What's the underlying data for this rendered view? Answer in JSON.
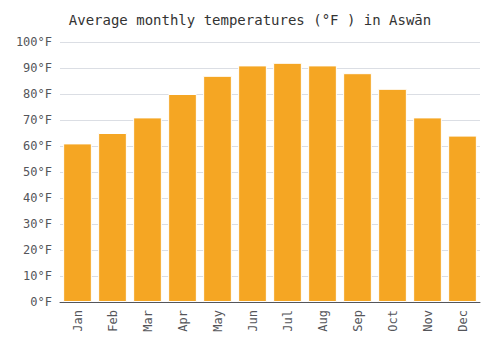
{
  "chart_data": {
    "type": "bar",
    "title": "Average monthly temperatures (°F ) in Aswān",
    "categories": [
      "Jan",
      "Feb",
      "Mar",
      "Apr",
      "May",
      "Jun",
      "Jul",
      "Aug",
      "Sep",
      "Oct",
      "Nov",
      "Dec"
    ],
    "values": [
      61,
      65,
      71,
      80,
      87,
      91,
      92,
      91,
      88,
      82,
      71,
      64
    ],
    "color": "#F5A623",
    "ylim": [
      0,
      100
    ],
    "yticks": [
      {
        "value": 0,
        "label": "0°F"
      },
      {
        "value": 10,
        "label": "10°F"
      },
      {
        "value": 20,
        "label": "20°F"
      },
      {
        "value": 30,
        "label": "30°F"
      },
      {
        "value": 40,
        "label": "40°F"
      },
      {
        "value": 50,
        "label": "50°F"
      },
      {
        "value": 60,
        "label": "60°F"
      },
      {
        "value": 70,
        "label": "70°F"
      },
      {
        "value": 80,
        "label": "80°F"
      },
      {
        "value": 90,
        "label": "90°F"
      },
      {
        "value": 100,
        "label": "100°F"
      }
    ],
    "grid": true
  }
}
